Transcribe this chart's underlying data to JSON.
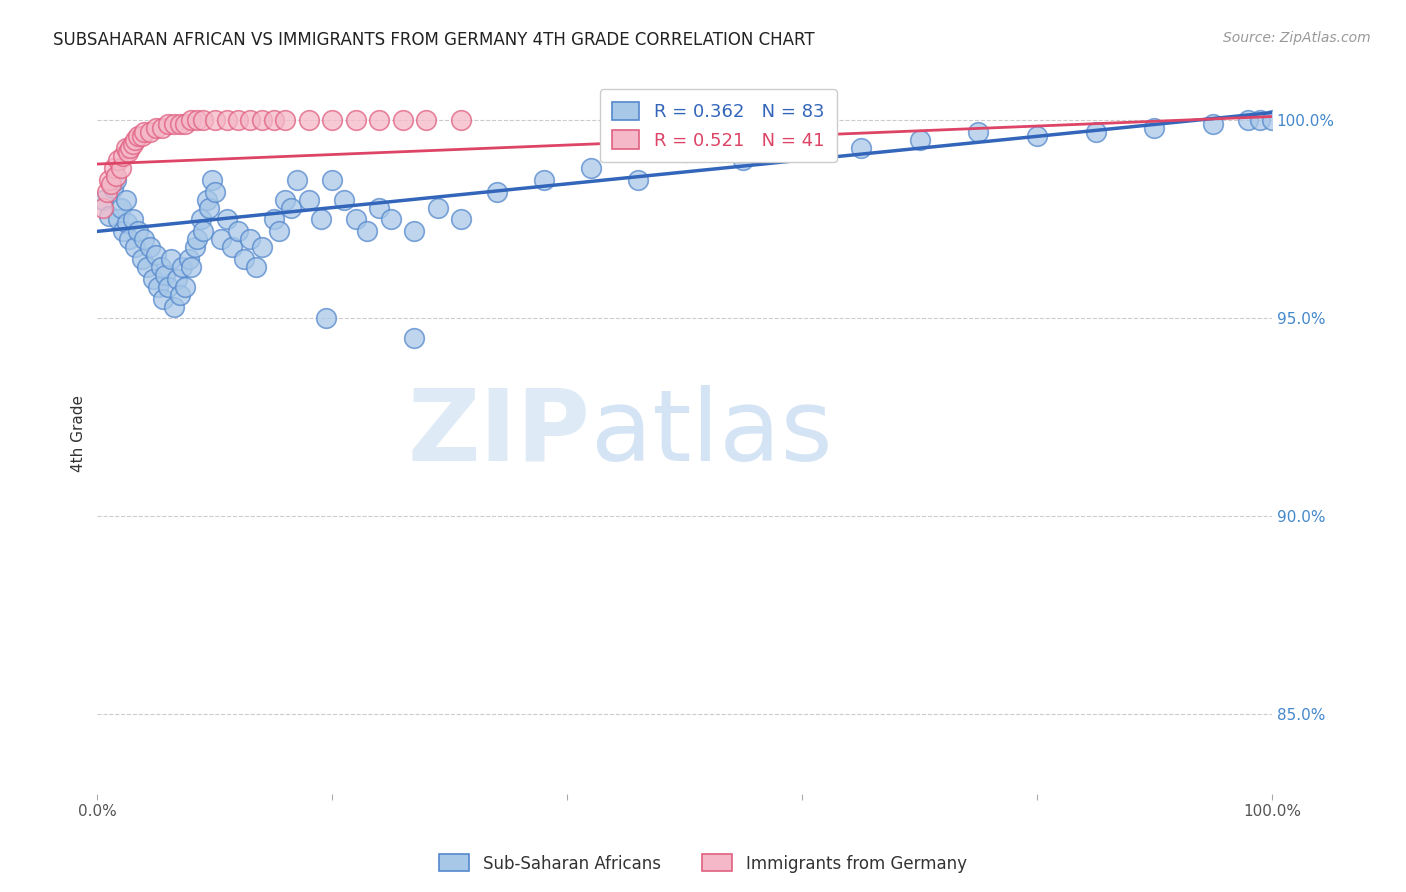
{
  "title": "SUBSAHARAN AFRICAN VS IMMIGRANTS FROM GERMANY 4TH GRADE CORRELATION CHART",
  "source": "Source: ZipAtlas.com",
  "ylabel": "4th Grade",
  "ylabel_ticks": [
    "100.0%",
    "95.0%",
    "90.0%",
    "85.0%"
  ],
  "ylabel_tick_vals": [
    1.0,
    0.95,
    0.9,
    0.85
  ],
  "xlim": [
    0.0,
    1.0
  ],
  "ylim": [
    0.83,
    1.012
  ],
  "legend_blue_r": "0.362",
  "legend_blue_n": "83",
  "legend_pink_r": "0.521",
  "legend_pink_n": "41",
  "legend_label_blue": "Sub-Saharan Africans",
  "legend_label_pink": "Immigrants from Germany",
  "watermark_zip": "ZIP",
  "watermark_atlas": "atlas",
  "blue_color": "#a8c8e8",
  "pink_color": "#f4b8c8",
  "blue_edge_color": "#5588cc",
  "pink_edge_color": "#e06080",
  "blue_line_color": "#3366bb",
  "pink_line_color": "#dd4466",
  "blue_trend_start": 0.972,
  "blue_trend_end": 1.002,
  "pink_trend_start": 0.989,
  "pink_trend_end": 1.001,
  "blue_scatter_x": [
    0.005,
    0.01,
    0.013,
    0.016,
    0.018,
    0.02,
    0.022,
    0.024,
    0.025,
    0.027,
    0.03,
    0.032,
    0.035,
    0.038,
    0.04,
    0.042,
    0.045,
    0.047,
    0.05,
    0.052,
    0.054,
    0.056,
    0.058,
    0.06,
    0.063,
    0.065,
    0.068,
    0.07,
    0.072,
    0.075,
    0.078,
    0.08,
    0.083,
    0.085,
    0.088,
    0.09,
    0.093,
    0.095,
    0.098,
    0.1,
    0.105,
    0.11,
    0.115,
    0.12,
    0.125,
    0.13,
    0.135,
    0.14,
    0.15,
    0.155,
    0.16,
    0.165,
    0.17,
    0.18,
    0.19,
    0.2,
    0.21,
    0.22,
    0.23,
    0.24,
    0.25,
    0.27,
    0.29,
    0.31,
    0.34,
    0.38,
    0.42,
    0.46,
    0.5,
    0.55,
    0.6,
    0.65,
    0.7,
    0.75,
    0.8,
    0.85,
    0.9,
    0.95,
    0.98,
    0.99,
    1.0,
    0.195,
    0.27
  ],
  "blue_scatter_y": [
    0.98,
    0.976,
    0.983,
    0.985,
    0.975,
    0.978,
    0.972,
    0.98,
    0.974,
    0.97,
    0.975,
    0.968,
    0.972,
    0.965,
    0.97,
    0.963,
    0.968,
    0.96,
    0.966,
    0.958,
    0.963,
    0.955,
    0.961,
    0.958,
    0.965,
    0.953,
    0.96,
    0.956,
    0.963,
    0.958,
    0.965,
    0.963,
    0.968,
    0.97,
    0.975,
    0.972,
    0.98,
    0.978,
    0.985,
    0.982,
    0.97,
    0.975,
    0.968,
    0.972,
    0.965,
    0.97,
    0.963,
    0.968,
    0.975,
    0.972,
    0.98,
    0.978,
    0.985,
    0.98,
    0.975,
    0.985,
    0.98,
    0.975,
    0.972,
    0.978,
    0.975,
    0.972,
    0.978,
    0.975,
    0.982,
    0.985,
    0.988,
    0.985,
    0.992,
    0.99,
    0.994,
    0.993,
    0.995,
    0.997,
    0.996,
    0.997,
    0.998,
    0.999,
    1.0,
    1.0,
    1.0,
    0.95,
    0.945
  ],
  "pink_scatter_x": [
    0.005,
    0.008,
    0.01,
    0.012,
    0.014,
    0.016,
    0.018,
    0.02,
    0.022,
    0.024,
    0.026,
    0.028,
    0.03,
    0.032,
    0.035,
    0.038,
    0.04,
    0.045,
    0.05,
    0.055,
    0.06,
    0.065,
    0.07,
    0.075,
    0.08,
    0.085,
    0.09,
    0.1,
    0.11,
    0.12,
    0.13,
    0.14,
    0.15,
    0.16,
    0.18,
    0.2,
    0.22,
    0.24,
    0.26,
    0.28,
    0.31
  ],
  "pink_scatter_y": [
    0.978,
    0.982,
    0.985,
    0.984,
    0.988,
    0.986,
    0.99,
    0.988,
    0.991,
    0.993,
    0.992,
    0.993,
    0.994,
    0.995,
    0.996,
    0.996,
    0.997,
    0.997,
    0.998,
    0.998,
    0.999,
    0.999,
    0.999,
    0.999,
    1.0,
    1.0,
    1.0,
    1.0,
    1.0,
    1.0,
    1.0,
    1.0,
    1.0,
    1.0,
    1.0,
    1.0,
    1.0,
    1.0,
    1.0,
    1.0,
    1.0
  ]
}
